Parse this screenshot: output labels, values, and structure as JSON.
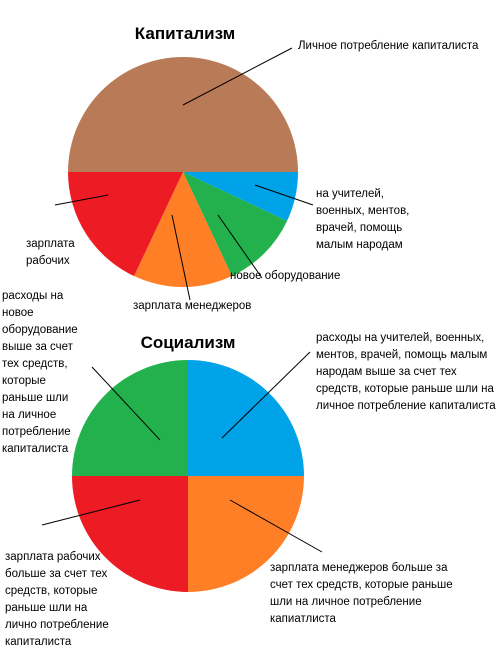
{
  "chart_data": [
    {
      "type": "pie",
      "title": "Капитализм",
      "categories": [
        "Личное потребление капиталиста",
        "на учителей, военных, ментов, врачей, помощь малым народам",
        "новое оборудование",
        "зарплата менеджеров",
        "зарплата рабочих"
      ],
      "values": [
        50,
        7,
        11,
        14,
        18
      ],
      "colors": [
        "#b97a57",
        "#00a2e8",
        "#22b14c",
        "#ff7f27",
        "#ed1c24"
      ]
    },
    {
      "type": "pie",
      "title": "Социализм",
      "categories": [
        "расходы на учителей, военных, ментов, врачей, помощь малым народам выше за счет тех средств, которые раньше шли на личное потребление капиталиста",
        "зарплата менеджеров больше за счет тех средств, которые раньше шли на личное потребление капиатлиста",
        "зарплата рабочих больше за счет тех средств, которые раньше шли на лично потребление капиталиста",
        "расходы на новое оборудование выше за счет тех средств, которые раньше шли на личное потребление капиталиста"
      ],
      "values": [
        25,
        25,
        25,
        25
      ],
      "colors": [
        "#00a2e8",
        "#ff7f27",
        "#ed1c24",
        "#22b14c"
      ]
    }
  ]
}
